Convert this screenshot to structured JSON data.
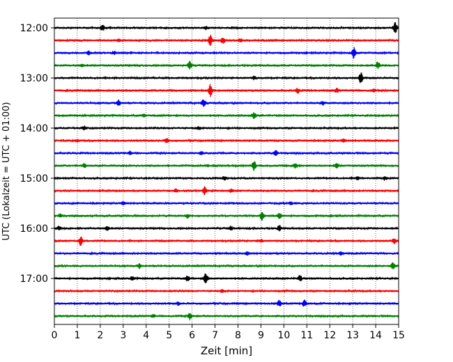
{
  "chart_data": {
    "type": "line",
    "subtype": "helicorder-seismogram",
    "xlabel": "Zeit  [min]",
    "ylabel": "UTC (Lokalzeit = UTC + 01:00)",
    "xlim": [
      0,
      15
    ],
    "x_ticks": [
      "0",
      "1",
      "2",
      "3",
      "4",
      "5",
      "6",
      "7",
      "8",
      "9",
      "10",
      "11",
      "12",
      "13",
      "14",
      "15"
    ],
    "y_tick_labels": [
      "12:00",
      "13:00",
      "14:00",
      "15:00",
      "16:00",
      "17:00"
    ],
    "grid": "vertical dotted at each minute",
    "trace_colors": [
      "#000000",
      "#ff0000",
      "#0000ff",
      "#008000"
    ],
    "traces": [
      {
        "start": "12:00",
        "color": "#000000",
        "events": [
          [
            2.1,
            0.5
          ],
          [
            6.6,
            0.25
          ],
          [
            14.85,
            0.9
          ]
        ]
      },
      {
        "start": "12:15",
        "color": "#ff0000",
        "events": [
          [
            6.8,
            0.9
          ],
          [
            7.35,
            0.5
          ],
          [
            8.1,
            0.3
          ],
          [
            2.8,
            0.25
          ]
        ]
      },
      {
        "start": "12:30",
        "color": "#0000ff",
        "events": [
          [
            1.5,
            0.3
          ],
          [
            13.05,
            1.0
          ],
          [
            2.6,
            0.25
          ]
        ]
      },
      {
        "start": "12:45",
        "color": "#008000",
        "events": [
          [
            5.9,
            0.7
          ],
          [
            14.1,
            0.6
          ],
          [
            1.2,
            0.2
          ]
        ]
      },
      {
        "start": "13:00",
        "color": "#000000",
        "events": [
          [
            13.35,
            0.9
          ],
          [
            8.7,
            0.25
          ]
        ]
      },
      {
        "start": "13:15",
        "color": "#ff0000",
        "events": [
          [
            6.8,
            1.0
          ],
          [
            10.6,
            0.4
          ],
          [
            12.3,
            0.3
          ],
          [
            13.9,
            0.25
          ]
        ]
      },
      {
        "start": "13:30",
        "color": "#0000ff",
        "events": [
          [
            2.8,
            0.5
          ],
          [
            6.5,
            0.6
          ],
          [
            11.7,
            0.3
          ]
        ]
      },
      {
        "start": "13:45",
        "color": "#008000",
        "events": [
          [
            8.7,
            0.5
          ],
          [
            3.9,
            0.2
          ]
        ]
      },
      {
        "start": "14:00",
        "color": "#000000",
        "events": [
          [
            1.3,
            0.3
          ],
          [
            6.3,
            0.2
          ]
        ]
      },
      {
        "start": "14:15",
        "color": "#ff0000",
        "events": [
          [
            4.9,
            0.4
          ],
          [
            12.6,
            0.3
          ],
          [
            1.0,
            0.2
          ]
        ]
      },
      {
        "start": "14:30",
        "color": "#0000ff",
        "events": [
          [
            9.65,
            0.5
          ],
          [
            6.4,
            0.3
          ],
          [
            3.3,
            0.25
          ]
        ]
      },
      {
        "start": "14:45",
        "color": "#008000",
        "events": [
          [
            8.7,
            0.9
          ],
          [
            10.5,
            0.4
          ],
          [
            12.3,
            0.35
          ],
          [
            1.3,
            0.3
          ]
        ]
      },
      {
        "start": "15:00",
        "color": "#000000",
        "events": [
          [
            7.4,
            0.3
          ],
          [
            13.2,
            0.3
          ],
          [
            14.4,
            0.3
          ]
        ]
      },
      {
        "start": "15:15",
        "color": "#ff0000",
        "events": [
          [
            6.55,
            0.7
          ],
          [
            7.7,
            0.3
          ],
          [
            5.3,
            0.25
          ]
        ]
      },
      {
        "start": "15:30",
        "color": "#0000ff",
        "events": [
          [
            3.0,
            0.3
          ],
          [
            10.3,
            0.25
          ]
        ]
      },
      {
        "start": "15:45",
        "color": "#008000",
        "events": [
          [
            9.05,
            0.8
          ],
          [
            9.8,
            0.45
          ],
          [
            5.8,
            0.3
          ],
          [
            0.25,
            0.3
          ]
        ]
      },
      {
        "start": "16:00",
        "color": "#000000",
        "events": [
          [
            9.8,
            0.45
          ],
          [
            2.3,
            0.35
          ],
          [
            7.7,
            0.3
          ],
          [
            0.2,
            0.3
          ]
        ]
      },
      {
        "start": "16:15",
        "color": "#ff0000",
        "events": [
          [
            1.15,
            0.8
          ],
          [
            14.8,
            0.4
          ],
          [
            9.0,
            0.2
          ]
        ]
      },
      {
        "start": "16:30",
        "color": "#0000ff",
        "events": [
          [
            8.4,
            0.3
          ],
          [
            12.5,
            0.25
          ]
        ]
      },
      {
        "start": "16:45",
        "color": "#008000",
        "events": [
          [
            3.7,
            0.35
          ],
          [
            14.75,
            0.5
          ]
        ]
      },
      {
        "start": "17:00",
        "color": "#000000",
        "events": [
          [
            6.6,
            1.0
          ],
          [
            5.8,
            0.5
          ],
          [
            10.7,
            0.5
          ],
          [
            3.4,
            0.3
          ]
        ]
      },
      {
        "start": "17:15",
        "color": "#ff0000",
        "events": [
          [
            7.3,
            0.2
          ]
        ]
      },
      {
        "start": "17:30",
        "color": "#0000ff",
        "events": [
          [
            9.8,
            0.5
          ],
          [
            10.9,
            0.55
          ],
          [
            5.4,
            0.25
          ]
        ]
      },
      {
        "start": "17:45",
        "color": "#008000",
        "events": [
          [
            5.9,
            0.6
          ],
          [
            4.3,
            0.25
          ]
        ]
      }
    ]
  }
}
